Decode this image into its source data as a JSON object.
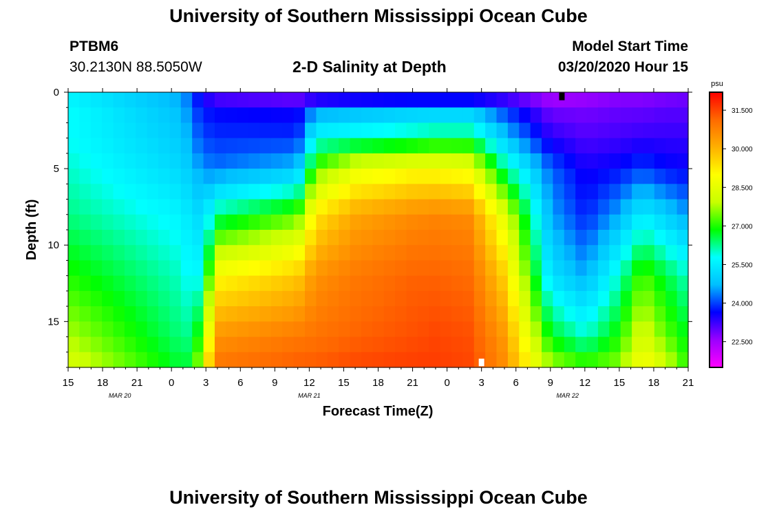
{
  "header": {
    "title": "University of Southern Mississippi Ocean Cube",
    "footer_title": "University of Southern Mississippi Ocean Cube",
    "station_id": "PTBM6",
    "station_coords": "30.2130N 88.5050W",
    "plot_title": "2-D Salinity at Depth",
    "model_start_label": "Model Start Time",
    "model_start_value": "03/20/2020 Hour 15"
  },
  "chart_data": {
    "type": "heatmap",
    "title": "2-D Salinity at Depth",
    "xlabel": "Forecast Time(Z)",
    "ylabel": "Depth (ft)",
    "x_tick_labels": [
      "15",
      "18",
      "21",
      "0",
      "3",
      "6",
      "9",
      "12",
      "15",
      "18",
      "21",
      "0",
      "3",
      "6",
      "9",
      "12",
      "15",
      "18",
      "21"
    ],
    "x_hours_range": [
      0,
      54
    ],
    "date_labels": [
      {
        "text": "MAR  20",
        "hour": 4.5
      },
      {
        "text": "MAR  21",
        "hour": 21
      },
      {
        "text": "MAR  22",
        "hour": 43.5
      }
    ],
    "y_tick_labels": [
      "0",
      "5",
      "10",
      "15"
    ],
    "y_ticks": [
      0,
      5,
      10,
      15
    ],
    "ylim": [
      0,
      18
    ],
    "colorbar": {
      "unit": "psu",
      "vmin": 21.5,
      "vmax": 32.2,
      "tick_labels": [
        "31.500",
        "30.000",
        "28.500",
        "27.000",
        "25.500",
        "24.000",
        "22.500"
      ],
      "ticks": [
        31.5,
        30.0,
        28.5,
        27.0,
        25.5,
        24.0,
        22.5
      ],
      "colors": [
        "#ff00ff",
        "#9b00ff",
        "#0000ff",
        "#00bfff",
        "#00ffff",
        "#00ff00",
        "#c8ff00",
        "#ffff00",
        "#ffb000",
        "#ff6a00",
        "#ff0000"
      ]
    },
    "markers": [
      {
        "name": "now-marker-top",
        "hour": 43,
        "depth": 0.3,
        "color": "#000000"
      },
      {
        "name": "now-marker-bottom",
        "hour": 36,
        "depth": 17.7,
        "color": "#ffffff"
      }
    ],
    "grid_shape": {
      "n_hours": 55,
      "n_depths": 18
    },
    "salinity_control_hours": [
      0,
      10,
      11,
      12,
      13,
      20,
      21.5,
      25,
      30,
      32,
      35,
      38,
      42,
      45,
      48,
      50,
      52,
      54
    ],
    "salinity_control_depths": [
      0,
      1,
      3,
      5,
      8,
      12,
      16,
      18
    ],
    "salinity_profiles": [
      [
        25.5,
        25.8,
        25.8,
        26.0,
        26.3,
        27.0,
        27.8,
        28.3
      ],
      [
        24.5,
        24.7,
        24.9,
        25.1,
        25.6,
        26.0,
        26.3,
        26.6
      ],
      [
        23.8,
        24.0,
        24.3,
        24.7,
        25.1,
        25.4,
        26.3,
        26.9
      ],
      [
        23.2,
        23.7,
        24.0,
        24.4,
        25.4,
        26.6,
        28.3,
        29.2
      ],
      [
        22.8,
        23.6,
        23.9,
        24.3,
        26.3,
        29.0,
        30.5,
        31.0
      ],
      [
        22.5,
        23.5,
        23.9,
        24.8,
        27.3,
        29.7,
        30.9,
        31.3
      ],
      [
        22.5,
        24.3,
        25.8,
        27.3,
        29.3,
        30.5,
        31.0,
        31.3
      ],
      [
        22.6,
        24.5,
        26.0,
        28.5,
        30.2,
        30.9,
        31.2,
        31.5
      ],
      [
        22.6,
        24.7,
        26.3,
        28.9,
        30.6,
        31.2,
        31.4,
        31.6
      ],
      [
        22.6,
        24.7,
        26.5,
        28.9,
        30.7,
        31.2,
        31.5,
        31.6
      ],
      [
        22.6,
        24.7,
        26.5,
        28.7,
        30.6,
        31.1,
        31.4,
        31.5
      ],
      [
        22.7,
        23.9,
        24.9,
        26.3,
        28.4,
        29.6,
        30.4,
        30.6
      ],
      [
        22.3,
        22.8,
        23.4,
        24.2,
        24.6,
        25.3,
        26.8,
        27.8
      ],
      [
        22.4,
        22.8,
        23.1,
        23.5,
        23.8,
        24.6,
        26.0,
        27.3
      ],
      [
        22.6,
        22.9,
        23.2,
        23.7,
        24.6,
        26.0,
        27.0,
        27.6
      ],
      [
        22.6,
        22.9,
        23.3,
        24.0,
        25.5,
        27.3,
        28.3,
        29.0
      ],
      [
        22.7,
        23.0,
        23.3,
        23.7,
        25.0,
        26.6,
        27.4,
        28.2
      ],
      [
        22.8,
        23.0,
        23.3,
        23.6,
        24.5,
        26.0,
        26.7,
        27.0
      ]
    ]
  }
}
